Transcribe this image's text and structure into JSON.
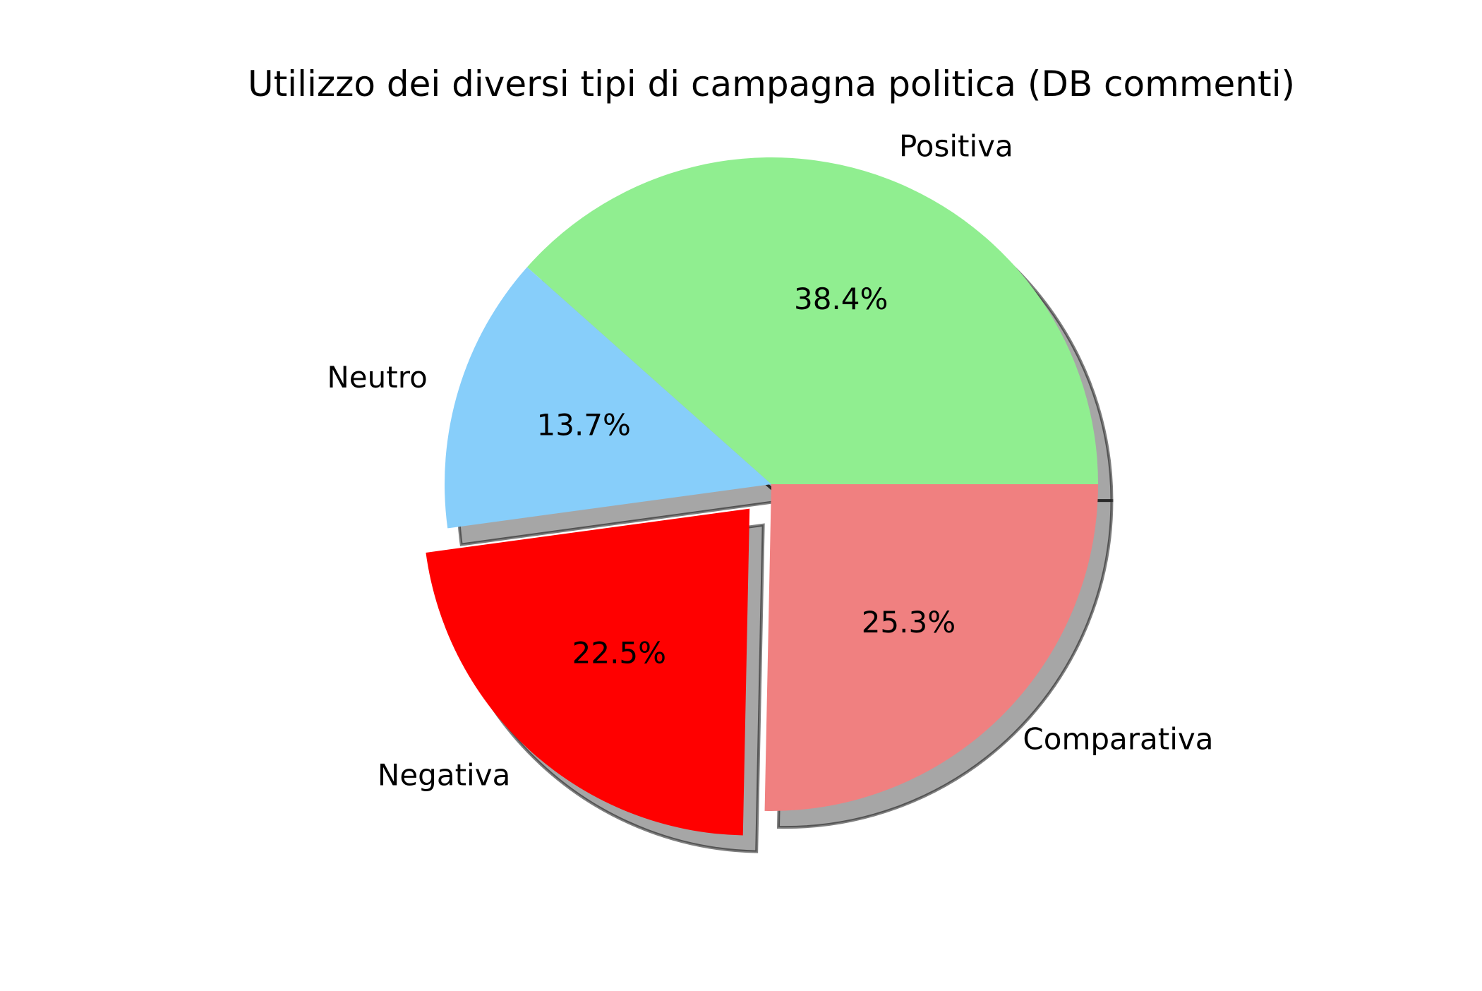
{
  "chart_data": {
    "type": "pie",
    "title": "Utilizzo dei diversi tipi di campagna politica (DB commenti)",
    "categories": [
      "Positiva",
      "Neutro",
      "Negativa",
      "Comparativa"
    ],
    "values": [
      38.4,
      13.7,
      22.5,
      25.3
    ],
    "value_labels": [
      "38.4%",
      "13.7%",
      "22.5%",
      "25.3%"
    ],
    "colors": [
      "#90ee90",
      "#87cefa",
      "#ff0000",
      "#f08080"
    ],
    "exploded": [
      false,
      false,
      true,
      false
    ],
    "shadow": true,
    "start_angle_deg": 0,
    "direction": "counterclockwise"
  }
}
